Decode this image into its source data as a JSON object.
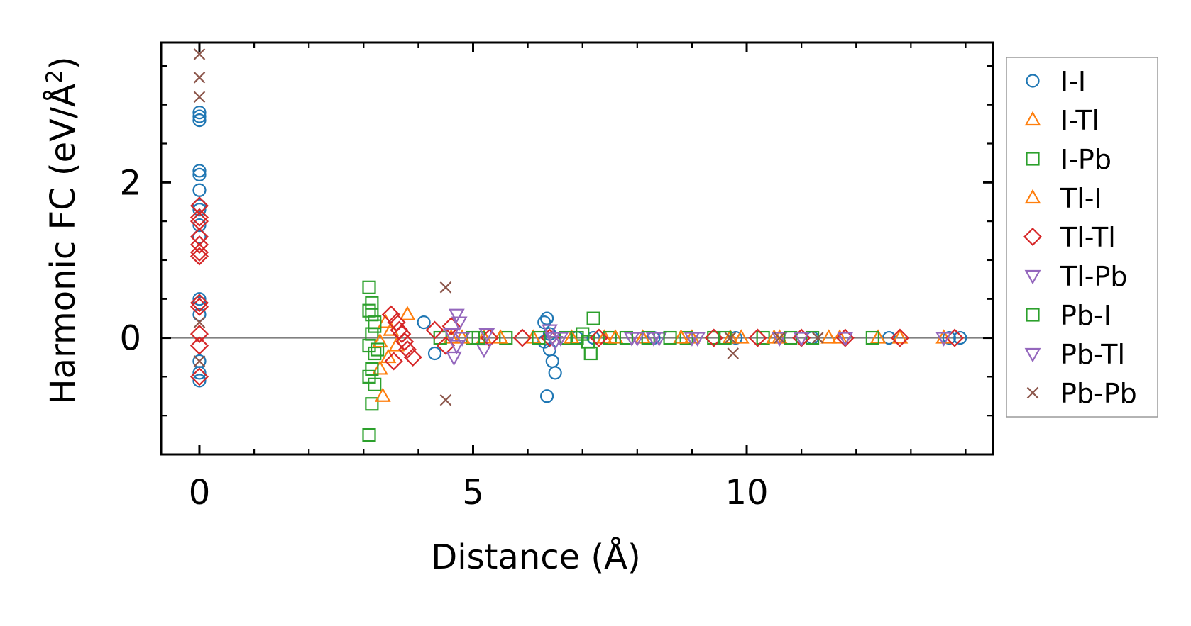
{
  "chart_data": {
    "type": "scatter",
    "xlabel": "Distance (Å)",
    "ylabel": "Harmonic FC (eV/Å",
    "ylabel_sup": "2",
    "ylabel_close": ")",
    "xlim": [
      -0.7,
      14.5
    ],
    "ylim": [
      -1.5,
      3.8
    ],
    "xticks": [
      0,
      5,
      10
    ],
    "xtick_labels": [
      "0",
      "5",
      "10"
    ],
    "yticks": [
      0,
      2
    ],
    "ytick_labels": [
      "0",
      "2"
    ],
    "zero_line": true,
    "legend_position": "outside-right",
    "series": [
      {
        "name": "I-I",
        "marker": "circle",
        "color": "#1f77b4",
        "x": [
          0,
          0,
          0,
          0,
          0,
          0,
          0,
          0,
          0,
          0,
          0,
          0,
          0,
          0,
          0,
          0,
          4.1,
          4.3,
          6.3,
          6.35,
          6.4,
          6.45,
          6.5,
          6.35,
          6.4,
          6.3,
          6.9,
          7.2,
          8.3,
          9.8,
          11.2,
          12.6,
          13.7,
          13.9
        ],
        "y": [
          2.9,
          2.85,
          2.8,
          2.15,
          2.1,
          1.9,
          1.7,
          1.65,
          1.45,
          1.3,
          0.5,
          0.45,
          0.3,
          -0.3,
          -0.45,
          -0.55,
          0.2,
          -0.2,
          0.2,
          0.25,
          -0.15,
          -0.3,
          -0.45,
          -0.75,
          0.05,
          -0.05,
          0.0,
          0.0,
          0.0,
          0.0,
          0.0,
          0.0,
          0.0,
          0.0
        ]
      },
      {
        "name": "I-Tl",
        "marker": "triangle-up",
        "color": "#ff7f0e",
        "x": [
          3.3,
          3.4,
          3.5,
          3.6,
          3.8,
          4.6,
          5.2,
          6.1,
          7.4,
          8.1,
          9.0,
          9.9,
          10.6,
          11.7,
          12.4,
          13.6
        ],
        "y": [
          -0.4,
          0.2,
          0.1,
          -0.1,
          0.3,
          0.0,
          0.0,
          0.0,
          0.0,
          0.0,
          0.0,
          0.0,
          0.0,
          0.0,
          0.0,
          0.0
        ]
      },
      {
        "name": "I-Pb",
        "marker": "square",
        "color": "#2ca02c",
        "x": [
          3.1,
          3.15,
          3.1,
          3.2,
          3.15,
          3.1,
          3.2,
          3.15,
          3.1,
          3.2,
          3.15,
          3.1,
          4.4,
          5.0,
          5.6,
          6.7,
          7.0,
          7.1,
          7.2,
          7.15,
          7.5,
          8.2,
          8.9,
          9.4,
          10.3,
          11.2,
          12.3
        ],
        "y": [
          0.65,
          0.45,
          0.35,
          0.2,
          0.05,
          -0.1,
          -0.2,
          -0.4,
          -0.5,
          -0.6,
          -0.85,
          -1.25,
          0.0,
          0.0,
          0.0,
          0.0,
          0.05,
          -0.05,
          0.25,
          -0.2,
          0.0,
          0.0,
          0.0,
          0.0,
          0.0,
          0.0,
          0.0
        ]
      },
      {
        "name": "Tl-I",
        "marker": "triangle-up",
        "color": "#ff7f0e",
        "x": [
          3.35,
          3.45,
          3.3,
          4.8,
          5.5,
          6.8,
          7.6,
          8.8,
          9.7,
          10.5,
          11.5,
          12.8
        ],
        "y": [
          -0.75,
          -0.25,
          -0.05,
          0.0,
          0.0,
          0.0,
          0.0,
          0.0,
          0.0,
          0.0,
          0.0,
          0.0
        ]
      },
      {
        "name": "Tl-Tl",
        "marker": "diamond",
        "color": "#d62728",
        "x": [
          0,
          0,
          0,
          0,
          0,
          0,
          0,
          0,
          0,
          0,
          0,
          0,
          3.5,
          3.6,
          3.7,
          3.8,
          3.9,
          3.55,
          3.65,
          3.75,
          4.3,
          4.5,
          4.6,
          5.3,
          5.9,
          6.4,
          7.3,
          9.4,
          10.2,
          11.0,
          11.8,
          12.8,
          13.8
        ],
        "y": [
          1.7,
          1.55,
          1.5,
          1.3,
          1.2,
          1.1,
          1.05,
          0.45,
          0.4,
          0.05,
          -0.1,
          -0.5,
          0.3,
          0.2,
          0.05,
          -0.15,
          -0.25,
          -0.3,
          0.1,
          -0.05,
          0.1,
          -0.1,
          0.15,
          0.0,
          0.0,
          0.0,
          0.0,
          0.0,
          0.0,
          0.0,
          0.0,
          0.0,
          0.0
        ]
      },
      {
        "name": "Tl-Pb",
        "marker": "triangle-down",
        "color": "#9467bd",
        "x": [
          4.7,
          4.75,
          4.8,
          4.65,
          5.2,
          6.4,
          6.5,
          6.6,
          8.0,
          8.4,
          9.1,
          10.6,
          11.8,
          13.6
        ],
        "y": [
          0.3,
          0.2,
          0.0,
          -0.25,
          -0.15,
          0.1,
          -0.05,
          0.0,
          0.0,
          0.0,
          0.0,
          0.0,
          0.0,
          0.0
        ]
      },
      {
        "name": "Pb-I",
        "marker": "square",
        "color": "#2ca02c",
        "x": [
          3.2,
          3.25,
          3.15,
          5.1,
          6.2,
          6.9,
          7.8,
          8.6,
          9.6,
          10.8
        ],
        "y": [
          0.15,
          -0.15,
          0.3,
          0.0,
          0.0,
          0.0,
          0.0,
          0.0,
          0.0,
          0.0
        ]
      },
      {
        "name": "Pb-Tl",
        "marker": "triangle-down",
        "color": "#9467bd",
        "x": [
          4.6,
          4.7,
          5.25,
          6.45,
          7.9,
          8.3,
          9.0,
          11.0
        ],
        "y": [
          0.05,
          -0.1,
          0.05,
          0.0,
          0.0,
          0.0,
          0.0,
          0.0
        ]
      },
      {
        "name": "Pb-Pb",
        "marker": "x",
        "color": "#8c564b",
        "x": [
          0,
          0,
          0,
          0,
          0,
          4.5,
          4.5,
          9.7,
          9.75,
          10.6,
          11.3
        ],
        "y": [
          3.65,
          3.35,
          3.1,
          0.2,
          -0.3,
          0.65,
          -0.8,
          0.0,
          -0.2,
          0.0,
          0.0
        ]
      }
    ]
  }
}
